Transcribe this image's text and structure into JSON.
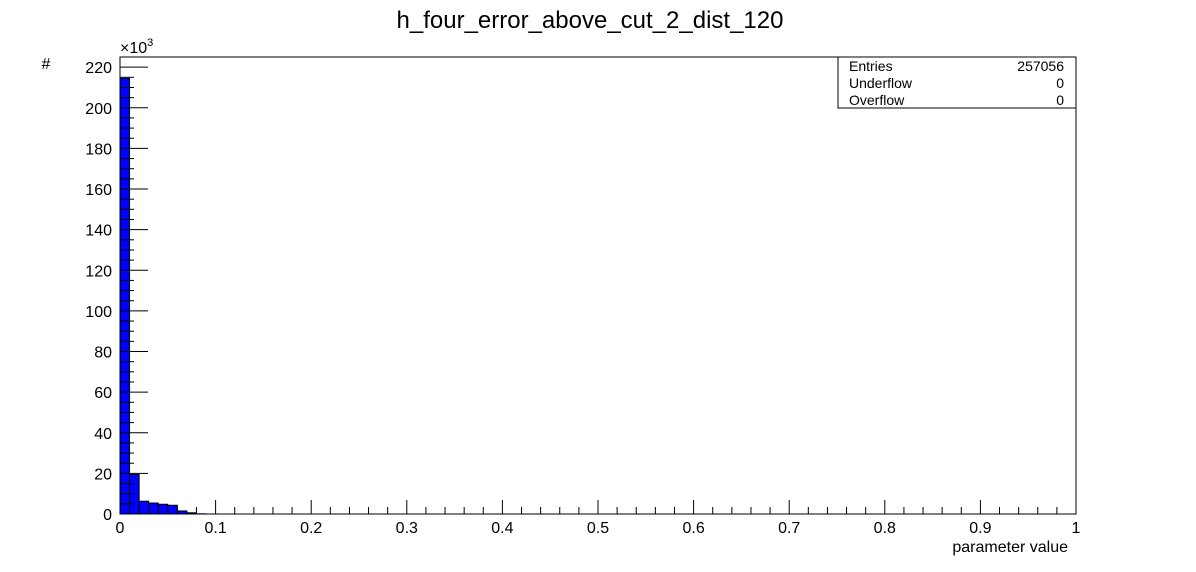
{
  "chart_data": {
    "type": "bar",
    "title": "h_four_error_above_cut_2_dist_120",
    "xlabel": "parameter value",
    "ylabel": "#",
    "y_multiplier_label": "×10",
    "y_multiplier_exponent": "3",
    "xlim": [
      0,
      1
    ],
    "ylim": [
      0,
      225
    ],
    "grid": false,
    "bin_width": 0.01,
    "x_ticks": [
      {
        "value": 0,
        "label": "0"
      },
      {
        "value": 0.1,
        "label": "0.1"
      },
      {
        "value": 0.2,
        "label": "0.2"
      },
      {
        "value": 0.3,
        "label": "0.3"
      },
      {
        "value": 0.4,
        "label": "0.4"
      },
      {
        "value": 0.5,
        "label": "0.5"
      },
      {
        "value": 0.6,
        "label": "0.6"
      },
      {
        "value": 0.7,
        "label": "0.7"
      },
      {
        "value": 0.8,
        "label": "0.8"
      },
      {
        "value": 0.9,
        "label": "0.9"
      },
      {
        "value": 1,
        "label": "1"
      }
    ],
    "y_ticks": [
      {
        "value": 0,
        "label": "0"
      },
      {
        "value": 20,
        "label": "20"
      },
      {
        "value": 40,
        "label": "40"
      },
      {
        "value": 60,
        "label": "60"
      },
      {
        "value": 80,
        "label": "80"
      },
      {
        "value": 100,
        "label": "100"
      },
      {
        "value": 120,
        "label": "120"
      },
      {
        "value": 140,
        "label": "140"
      },
      {
        "value": 160,
        "label": "160"
      },
      {
        "value": 180,
        "label": "180"
      },
      {
        "value": 200,
        "label": "200"
      },
      {
        "value": 220,
        "label": "220"
      }
    ],
    "bins": [
      {
        "x0": 0.0,
        "x1": 0.01,
        "value": 214.5
      },
      {
        "x0": 0.01,
        "x1": 0.02,
        "value": 19.5
      },
      {
        "x0": 0.02,
        "x1": 0.03,
        "value": 6.3
      },
      {
        "x0": 0.03,
        "x1": 0.04,
        "value": 5.4
      },
      {
        "x0": 0.04,
        "x1": 0.05,
        "value": 4.8
      },
      {
        "x0": 0.05,
        "x1": 0.06,
        "value": 4.3
      },
      {
        "x0": 0.06,
        "x1": 0.07,
        "value": 1.5
      },
      {
        "x0": 0.07,
        "x1": 0.08,
        "value": 0.6
      },
      {
        "x0": 0.08,
        "x1": 0.09,
        "value": 0.1
      }
    ],
    "bar_color": "#0000ff",
    "bar_edge_color": "#000000",
    "stats": {
      "entries_label": "Entries",
      "entries_value": "257056",
      "underflow_label": "Underflow",
      "underflow_value": "0",
      "overflow_label": "Overflow",
      "overflow_value": "0"
    }
  }
}
